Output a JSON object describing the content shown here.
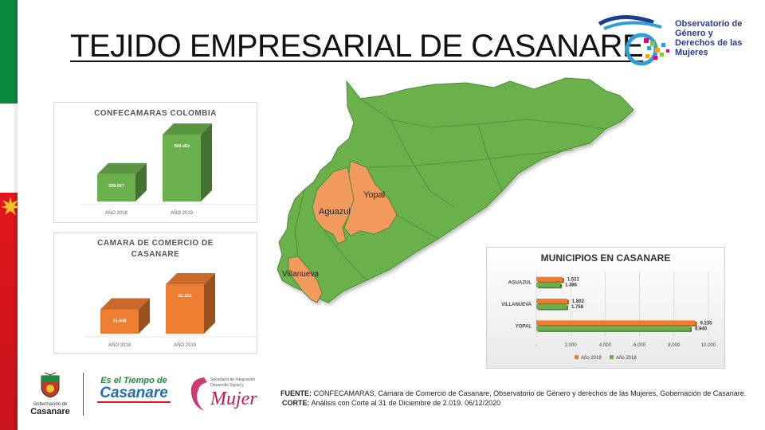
{
  "title": "TEJIDO EMPRESARIAL DE CASANARE",
  "logo": {
    "lines": [
      "Observatorio de",
      "Género y",
      "Derechos de las",
      "Mujeres"
    ]
  },
  "colors": {
    "green": "#6ab04c",
    "orange": "#ed7d31",
    "map_green": "#6ab04c",
    "map_orange": "#f39a5e"
  },
  "map": {
    "labels": [
      "Yopal",
      "Aguazul",
      "Villanueva"
    ]
  },
  "chart_data": [
    {
      "type": "bar",
      "title": "CONFECAMARAS COLOMBIA",
      "categories": [
        "AÑO 2018",
        "AÑO 2019"
      ],
      "values": [
        309027,
        309463
      ],
      "value_labels": [
        "309.027",
        "309.463"
      ],
      "color": "#6ab04c"
    },
    {
      "type": "bar",
      "title": "CAMARA DE COMERCIO DE CASANARE",
      "categories": [
        "AÑO 2018",
        "AÑO 2019"
      ],
      "values": [
        21548,
        22153
      ],
      "value_labels": [
        "21.548",
        "22.153"
      ],
      "color": "#ed7d31"
    },
    {
      "type": "bar",
      "orientation": "horizontal",
      "title": "MUNICIPIOS EN CASANARE",
      "categories": [
        "AGUAZUL",
        "VILLANUEVA",
        "YOPAL"
      ],
      "series": [
        {
          "name": "Año 2019",
          "values": [
            1521,
            1802,
            9235
          ],
          "labels": [
            "1.521",
            "1.802",
            "9.235"
          ],
          "color": "#ed7d31"
        },
        {
          "name": "Año 2018",
          "values": [
            1386,
            1758,
            8940
          ],
          "labels": [
            "1.386",
            "1.758",
            "8.940"
          ],
          "color": "#6ab04c"
        }
      ],
      "xlim": [
        0,
        10000
      ],
      "x_ticks": [
        "-",
        "2.000",
        "4.000",
        "6.000",
        "8.000",
        "10.000"
      ],
      "legend": "bottom"
    }
  ],
  "footer": {
    "logo1": [
      "Gobernación de",
      "Casanare"
    ],
    "logo2": [
      "Es el Tiempo de",
      "Casanare"
    ],
    "logo3": [
      "Secretaría de Integración",
      "Desarrollo Social y",
      "Mujer"
    ],
    "source_label": "FUENTE:",
    "source_text": "CONFECAMARAS, Cámara de Comercio de Casanare, Observatorio de Género y derechos de las Mujeres, Gobernación de Casanare.",
    "cut_label": "CORTE:",
    "cut_text": "Análisis con Corte al 31 de Diciembre de 2.019. 06/12/2020"
  }
}
